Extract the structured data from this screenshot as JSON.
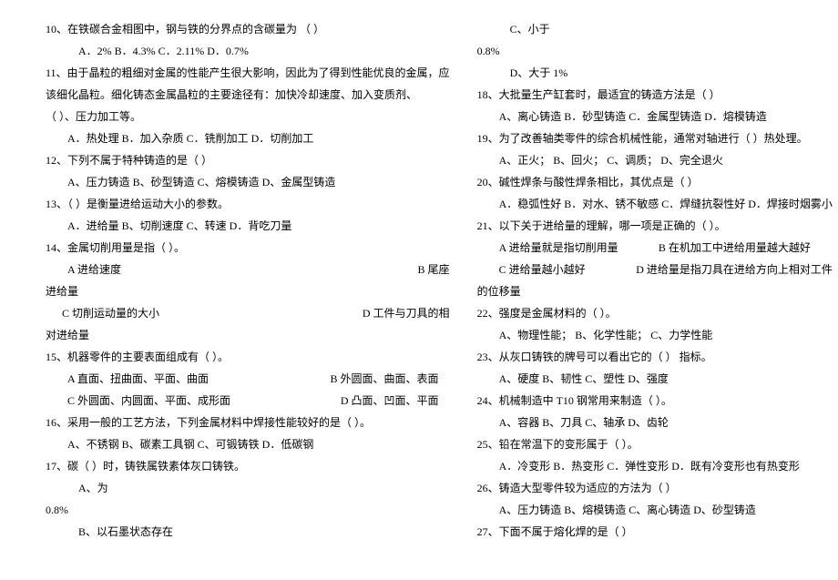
{
  "left": {
    "l1": "10、在铁碳合金相图中，钢与铁的分界点的含碳量为            （     ）",
    "l2": "A．2%      B．4.3%      C．2.11%      D．0.7%",
    "l3": "11、由于晶粒的粗细对金属的性能产生很大影响，因此为了得到性能优良的金属，应",
    "l4": "该细化晶粒。细化铸态金属晶粒的主要途径有：加快冷却速度、加入变质剂、",
    "l5": "（        ）、压力加工等。",
    "l6": "A．热处理     B．加入杂质      C．铣削加工     D．切削加工",
    "l7": "12、下列不属于特种铸造的是（     ）",
    "l8": "A、压力铸造    B、砂型铸造     C、熔模铸造    D、金属型铸造",
    "l9": "13、（      ）是衡量进给运动大小的参数。",
    "l10": "A．进给量     B、切削速度     C、转速     D．背吃刀量",
    "l11": "14、金属切削用量是指（      ）。",
    "l12a": "A 进给速度",
    "l12b": "B 尾座",
    "l13": "进给量",
    "l14a": "C 切削运动量的大小",
    "l14b": "D 工件与刀具的相",
    "l15": "对进给量",
    "l16": "15、机器零件的主要表面组成有（       ）。",
    "l17a": "A 直面、扭曲面、平面、曲面",
    "l17b": "B 外圆面、曲面、表面",
    "l18a": "C 外圆面、内圆面、平面、成形面",
    "l18b": "D 凸面、凹面、平面",
    "l19": "16、采用一般的工艺方法，下列金属材料中焊接性能较好的是（      ）。",
    "l20": "A、不锈钢    B、碳素工具钢    C、可锻铸铁    D．低碳钢",
    "l21": "17、碳（      ）时，铸铁属铁素体灰口铸铁。",
    "l22": "A、为",
    "l23": "0.8%",
    "l24": "B、以石墨状态存在"
  },
  "right": {
    "r1": "C、小于",
    "r2": "0.8%",
    "r3": "D、大于 1%",
    "r4": "18、大批量生产缸套时，最适宜的铸造方法是（       ）",
    "r5": "A、离心铸造       B．砂型铸造       C．金属型铸造       D．熔模铸造",
    "r6": "19、为了改善轴类零件的综合机械性能，通常对轴进行（    ）热处理。",
    "r7": "A、正火；    B、回火；     C、调质；    D、完全退火",
    "r8": "20、碱性焊条与酸性焊条相比，其优点是（       ）",
    "r9": "A．稳弧性好      B．对水、锈不敏感     C．焊缝抗裂性好     D．焊接时烟雾小",
    "r10": "21、以下关于进给量的理解，哪一项是正确的（        ）。",
    "r11a": "A 进给量就是指切削用量",
    "r11b": "B 在机加工中进给用量越大越好",
    "r12a": "C 进给量越小越好",
    "r12b": "D 进给量是指刀具在进给方向上相对工件",
    "r13": "的位移量",
    "r14": "22、强度是金属材料的（      ）。",
    "r15": "A、物理性能；    B、化学性能；     C、力学性能",
    "r16": "23、从灰口铸铁的牌号可以看出它的（      ） 指标。",
    "r17": "A、硬度      B、韧性     C、塑性     D、强度",
    "r18": "24、机械制造中 T10 钢常用来制造（       ）。",
    "r19": "A、容器     B、刀具     C、轴承     D、齿轮",
    "r20": "25、铅在常温下的变形属于（       ）。",
    "r21": "A．冷变形      B．热变形      C．弹性变形      D．既有冷变形也有热变形",
    "r22": "26、铸造大型零件较为适应的方法为（       ）",
    "r23": "A、压力铸造      B、熔模铸造     C、离心铸造      D、砂型铸造",
    "r24": "27、下面不属于熔化焊的是（       ）"
  }
}
